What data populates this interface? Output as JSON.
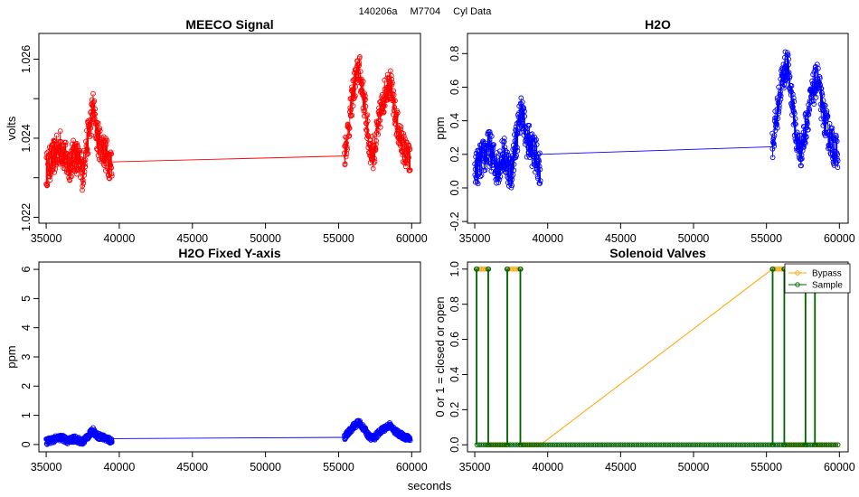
{
  "figure": {
    "supertitle": [
      "140206a",
      "M7704",
      "Cyl Data"
    ],
    "shared_xlabel": "seconds"
  },
  "chart_data": [
    {
      "id": "meeco",
      "type": "scatter",
      "title": "MEECO Signal",
      "xlabel": "",
      "ylabel": "volts",
      "xlim": [
        34500,
        60600
      ],
      "ylim": [
        1.02185,
        1.02665
      ],
      "xticks": [
        35000,
        40000,
        45000,
        50000,
        55000,
        60000
      ],
      "yticks": [
        1.022,
        1.023,
        1.024,
        1.025,
        1.026
      ],
      "ytick_labels": [
        "1.022",
        "",
        "1.024",
        "",
        "1.026"
      ],
      "series": [
        {
          "name": "MEECO Signal",
          "color": "#ff0000",
          "marker": "open-circle",
          "connect": true,
          "segments": [
            {
              "x_start": 35000,
              "x_end": 39500,
              "x": [
                35000,
                35500,
                36000,
                36500,
                37000,
                37500,
                37700,
                38000,
                38200,
                38500,
                38800,
                39200,
                39500
              ],
              "y": [
                1.0232,
                1.0235,
                1.0238,
                1.0233,
                1.0236,
                1.0231,
                1.0237,
                1.0243,
                1.0248,
                1.024,
                1.0238,
                1.0235,
                1.0233
              ],
              "noise": 0.00045
            },
            {
              "x_start": 39500,
              "x_end": 55400,
              "x": [
                39500,
                55400
              ],
              "y": [
                1.0234,
                1.02355
              ],
              "noise": 0
            },
            {
              "x_start": 55400,
              "x_end": 59900,
              "x": [
                55400,
                55700,
                56000,
                56400,
                56800,
                57100,
                57400,
                57800,
                58200,
                58500,
                58800,
                59200,
                59600,
                59900
              ],
              "y": [
                1.0236,
                1.0243,
                1.0252,
                1.0258,
                1.0248,
                1.0238,
                1.0236,
                1.0245,
                1.0252,
                1.0255,
                1.0247,
                1.024,
                1.0236,
                1.0234
              ],
              "noise": 0.0004
            }
          ]
        }
      ]
    },
    {
      "id": "h2o",
      "type": "scatter",
      "title": "H2O",
      "xlabel": "",
      "ylabel": "ppm",
      "xlim": [
        34500,
        60600
      ],
      "ylim": [
        -0.21,
        0.92
      ],
      "xticks": [
        35000,
        40000,
        45000,
        50000,
        55000,
        60000
      ],
      "yticks": [
        -0.2,
        0.0,
        0.2,
        0.4,
        0.6,
        0.8
      ],
      "ytick_labels": [
        "-0.2",
        "0.0",
        "0.2",
        "0.4",
        "0.6",
        "0.8"
      ],
      "series": [
        {
          "name": "H2O",
          "color": "#0000ff",
          "marker": "open-circle",
          "connect": true,
          "segments": [
            {
              "x_start": 35000,
              "x_end": 39500,
              "x": [
                35000,
                35500,
                36000,
                36500,
                37000,
                37500,
                37700,
                38000,
                38200,
                38500,
                38800,
                39200,
                39500
              ],
              "y": [
                0.1,
                0.17,
                0.24,
                0.12,
                0.2,
                0.08,
                0.22,
                0.36,
                0.48,
                0.3,
                0.26,
                0.18,
                0.12
              ],
              "noise": 0.11
            },
            {
              "x_start": 39500,
              "x_end": 55400,
              "x": [
                39500,
                55400
              ],
              "y": [
                0.2,
                0.245
              ],
              "noise": 0
            },
            {
              "x_start": 55400,
              "x_end": 59900,
              "x": [
                55400,
                55700,
                56000,
                56400,
                56800,
                57100,
                57400,
                57800,
                58200,
                58500,
                58800,
                59200,
                59600,
                59900
              ],
              "y": [
                0.25,
                0.42,
                0.62,
                0.75,
                0.5,
                0.26,
                0.22,
                0.42,
                0.58,
                0.66,
                0.48,
                0.34,
                0.24,
                0.2
              ],
              "noise": 0.1
            }
          ]
        }
      ]
    },
    {
      "id": "h2o_fixed",
      "type": "scatter",
      "title": "H2O Fixed Y-axis",
      "xlabel": "",
      "ylabel": "ppm",
      "xlim": [
        34500,
        60600
      ],
      "ylim": [
        -0.25,
        6.25
      ],
      "xticks": [
        35000,
        40000,
        45000,
        50000,
        55000,
        60000
      ],
      "yticks": [
        0,
        1,
        2,
        3,
        4,
        5,
        6
      ],
      "ytick_labels": [
        "0",
        "1",
        "2",
        "3",
        "4",
        "5",
        "6"
      ],
      "series": [
        {
          "name": "H2O",
          "color": "#0000ff",
          "marker": "open-circle",
          "connect": true,
          "segments": [
            {
              "x_start": 35000,
              "x_end": 39500,
              "x": [
                35000,
                35500,
                36000,
                36500,
                37000,
                37500,
                37700,
                38000,
                38200,
                38500,
                38800,
                39200,
                39500
              ],
              "y": [
                0.1,
                0.17,
                0.24,
                0.12,
                0.2,
                0.08,
                0.22,
                0.36,
                0.48,
                0.3,
                0.26,
                0.18,
                0.12
              ],
              "noise": 0.11
            },
            {
              "x_start": 39500,
              "x_end": 55400,
              "x": [
                39500,
                55400
              ],
              "y": [
                0.2,
                0.245
              ],
              "noise": 0
            },
            {
              "x_start": 55400,
              "x_end": 59900,
              "x": [
                55400,
                55700,
                56000,
                56400,
                56800,
                57100,
                57400,
                57800,
                58200,
                58500,
                58800,
                59200,
                59600,
                59900
              ],
              "y": [
                0.25,
                0.42,
                0.62,
                0.75,
                0.5,
                0.26,
                0.22,
                0.42,
                0.58,
                0.66,
                0.48,
                0.34,
                0.24,
                0.2
              ],
              "noise": 0.1
            }
          ]
        }
      ]
    },
    {
      "id": "valves",
      "type": "line",
      "title": "Solenoid Valves",
      "xlabel": "",
      "ylabel": "0 or 1 = closed or open",
      "xlim": [
        34500,
        60600
      ],
      "ylim": [
        -0.04,
        1.04
      ],
      "xticks": [
        35000,
        40000,
        45000,
        50000,
        55000,
        60000
      ],
      "yticks": [
        0.0,
        0.2,
        0.4,
        0.6,
        0.8,
        1.0
      ],
      "ytick_labels": [
        "0.0",
        "0.2",
        "0.4",
        "0.6",
        "0.8",
        "1.0"
      ],
      "legend": {
        "position": "top-right",
        "entries": [
          "Bypass",
          "Sample"
        ]
      },
      "series": [
        {
          "name": "Bypass",
          "color": "#ffa500",
          "marker": "open-circle",
          "steps": [
            [
              35150,
              0
            ],
            [
              35150,
              1
            ],
            [
              35900,
              1
            ],
            [
              35900,
              0
            ],
            [
              37250,
              0
            ],
            [
              37250,
              1
            ],
            [
              38100,
              1
            ],
            [
              38100,
              0
            ],
            [
              39500,
              0
            ],
            [
              55400,
              1
            ],
            [
              56200,
              1
            ],
            [
              56200,
              0
            ],
            [
              57700,
              0
            ],
            [
              57700,
              1
            ],
            [
              58300,
              1
            ],
            [
              58300,
              0
            ],
            [
              59900,
              0
            ]
          ]
        },
        {
          "name": "Sample",
          "color": "#006400",
          "marker": "open-circle",
          "steps": [
            [
              35100,
              0
            ],
            [
              35100,
              1
            ],
            [
              35150,
              1
            ],
            [
              35150,
              0
            ],
            [
              35900,
              0
            ],
            [
              35900,
              1
            ],
            [
              35950,
              1
            ],
            [
              35950,
              0
            ],
            [
              37200,
              0
            ],
            [
              37200,
              1
            ],
            [
              37250,
              1
            ],
            [
              37250,
              0
            ],
            [
              38100,
              0
            ],
            [
              38100,
              1
            ],
            [
              38150,
              1
            ],
            [
              38150,
              0
            ],
            [
              55400,
              0
            ],
            [
              55400,
              1
            ],
            [
              55450,
              1
            ],
            [
              55450,
              0
            ],
            [
              56200,
              0
            ],
            [
              56200,
              1
            ],
            [
              56250,
              1
            ],
            [
              56250,
              0
            ],
            [
              57650,
              0
            ],
            [
              57650,
              1
            ],
            [
              57700,
              1
            ],
            [
              57700,
              0
            ],
            [
              58300,
              0
            ],
            [
              58300,
              1
            ],
            [
              58350,
              1
            ],
            [
              58350,
              0
            ],
            [
              59900,
              0
            ]
          ]
        }
      ]
    }
  ]
}
